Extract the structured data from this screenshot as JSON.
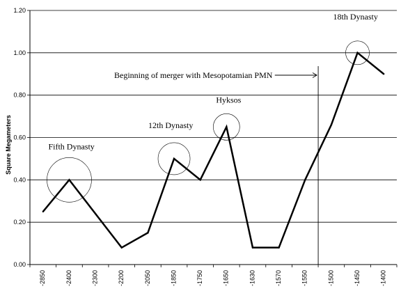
{
  "chart_data": {
    "type": "line",
    "title": "",
    "xlabel": "",
    "ylabel": "Square Megameters",
    "categories": [
      "-2850",
      "-2400",
      "-2300",
      "-2200",
      "-2050",
      "-1850",
      "-1750",
      "-1650",
      "-1630",
      "-1570",
      "-1550",
      "-1500",
      "-1450",
      "-1400"
    ],
    "series": [
      {
        "values": [
          0.25,
          0.4,
          0.24,
          0.08,
          0.15,
          0.5,
          0.4,
          0.65,
          0.08,
          0.08,
          0.4,
          0.66,
          1.0,
          0.9
        ]
      }
    ],
    "ylim": [
      0,
      1.2
    ],
    "yticks": [
      "0.00",
      "0.20",
      "0.40",
      "0.60",
      "0.80",
      "1.00",
      "1.20"
    ],
    "grid": "horizontal",
    "line_color": "#000000",
    "annotations": [
      {
        "text": "Fifth Dynasty",
        "category": "-2400"
      },
      {
        "text": "12th Dynasty",
        "category": "-1850"
      },
      {
        "text": "Hyksos",
        "category": "-1650"
      },
      {
        "text": "18th Dynasty",
        "category": "-1450"
      }
    ],
    "marker": {
      "category": "-1500",
      "text": "Beginning of merger with Mesopotamian PMN"
    }
  }
}
